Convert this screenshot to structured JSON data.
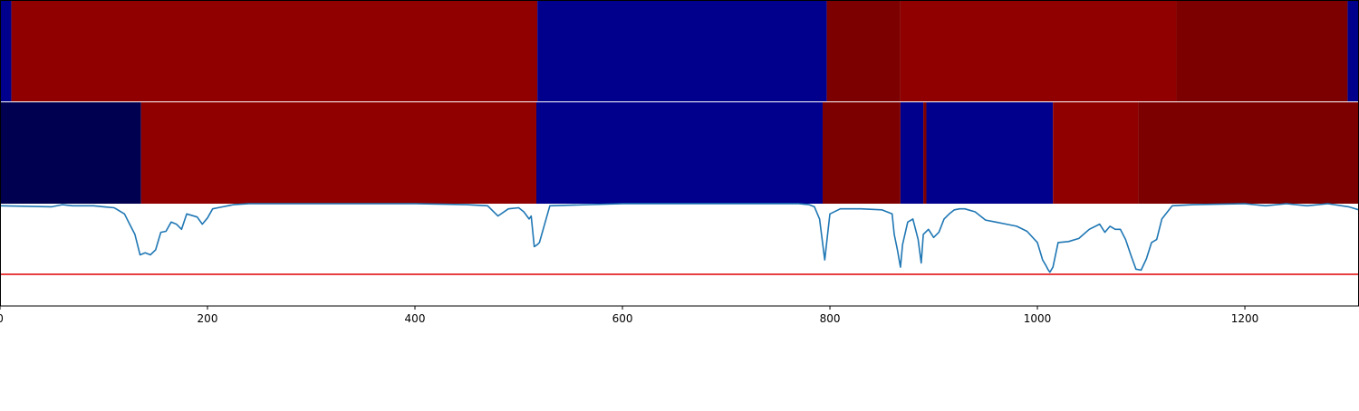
{
  "chart_data": {
    "type": "heatmap",
    "x_range": [
      0,
      1310
    ],
    "xticks": [
      "0",
      "200",
      "400",
      "600",
      "800",
      "1000",
      "1200"
    ],
    "tick_values": [
      0,
      200,
      400,
      600,
      800,
      1000,
      1200
    ],
    "colors": {
      "navy_dark": "#000050",
      "navy": "#00008c",
      "red": "#910000",
      "dark_red": "#7d0000",
      "line": "#1f77b4",
      "threshold": "#e00000"
    },
    "top_track": [
      {
        "start": 0,
        "end": 11,
        "color": "navy"
      },
      {
        "start": 11,
        "end": 518,
        "color": "red"
      },
      {
        "start": 518,
        "end": 797,
        "color": "navy"
      },
      {
        "start": 797,
        "end": 868,
        "color": "dark_red"
      },
      {
        "start": 868,
        "end": 1134,
        "color": "red"
      },
      {
        "start": 1134,
        "end": 1299,
        "color": "dark_red"
      },
      {
        "start": 1299,
        "end": 1310,
        "color": "navy"
      }
    ],
    "middle_track": [
      {
        "start": 0,
        "end": 136,
        "color": "navy_dark"
      },
      {
        "start": 136,
        "end": 517,
        "color": "red"
      },
      {
        "start": 517,
        "end": 793,
        "color": "navy"
      },
      {
        "start": 793,
        "end": 868,
        "color": "dark_red"
      },
      {
        "start": 868,
        "end": 890,
        "color": "navy"
      },
      {
        "start": 890,
        "end": 893,
        "color": "dark_red"
      },
      {
        "start": 893,
        "end": 1015,
        "color": "navy"
      },
      {
        "start": 1015,
        "end": 1097,
        "color": "red"
      },
      {
        "start": 1097,
        "end": 1310,
        "color": "dark_red"
      }
    ],
    "line_ylim": [
      0,
      1
    ],
    "threshold": 0.31,
    "line_series": {
      "x": [
        0,
        50,
        60,
        70,
        90,
        100,
        110,
        120,
        125,
        130,
        135,
        140,
        145,
        150,
        155,
        160,
        165,
        170,
        175,
        180,
        190,
        195,
        200,
        205,
        210,
        215,
        225,
        240,
        300,
        400,
        450,
        470,
        475,
        480,
        490,
        500,
        505,
        510,
        512,
        515,
        518,
        520,
        530,
        600,
        700,
        770,
        780,
        785,
        790,
        795,
        800,
        810,
        830,
        850,
        860,
        862,
        865,
        868,
        870,
        875,
        880,
        885,
        888,
        890,
        895,
        900,
        905,
        910,
        915,
        920,
        925,
        930,
        940,
        950,
        960,
        970,
        980,
        990,
        1000,
        1005,
        1008,
        1010,
        1012,
        1015,
        1020,
        1030,
        1040,
        1050,
        1060,
        1065,
        1070,
        1075,
        1080,
        1085,
        1090,
        1095,
        1100,
        1105,
        1110,
        1115,
        1120,
        1130,
        1150,
        1200,
        1220,
        1240,
        1260,
        1280,
        1300,
        1310
      ],
      "y": [
        0.98,
        0.97,
        0.99,
        0.98,
        0.98,
        0.97,
        0.96,
        0.9,
        0.8,
        0.7,
        0.5,
        0.52,
        0.5,
        0.55,
        0.72,
        0.73,
        0.82,
        0.8,
        0.75,
        0.9,
        0.87,
        0.8,
        0.86,
        0.95,
        0.96,
        0.97,
        0.99,
        1.0,
        1.0,
        1.0,
        0.99,
        0.98,
        0.93,
        0.88,
        0.95,
        0.96,
        0.92,
        0.85,
        0.88,
        0.58,
        0.6,
        0.62,
        0.98,
        1.0,
        1.0,
        1.0,
        0.99,
        0.97,
        0.85,
        0.45,
        0.9,
        0.95,
        0.95,
        0.94,
        0.9,
        0.7,
        0.55,
        0.38,
        0.6,
        0.82,
        0.85,
        0.65,
        0.42,
        0.7,
        0.75,
        0.67,
        0.72,
        0.85,
        0.9,
        0.94,
        0.95,
        0.95,
        0.92,
        0.84,
        0.82,
        0.8,
        0.78,
        0.73,
        0.62,
        0.45,
        0.4,
        0.36,
        0.33,
        0.38,
        0.62,
        0.63,
        0.66,
        0.75,
        0.8,
        0.72,
        0.78,
        0.75,
        0.75,
        0.65,
        0.5,
        0.36,
        0.35,
        0.46,
        0.62,
        0.65,
        0.85,
        0.98,
        0.99,
        1.0,
        0.98,
        1.0,
        0.98,
        1.0,
        0.97,
        0.94
      ]
    }
  }
}
